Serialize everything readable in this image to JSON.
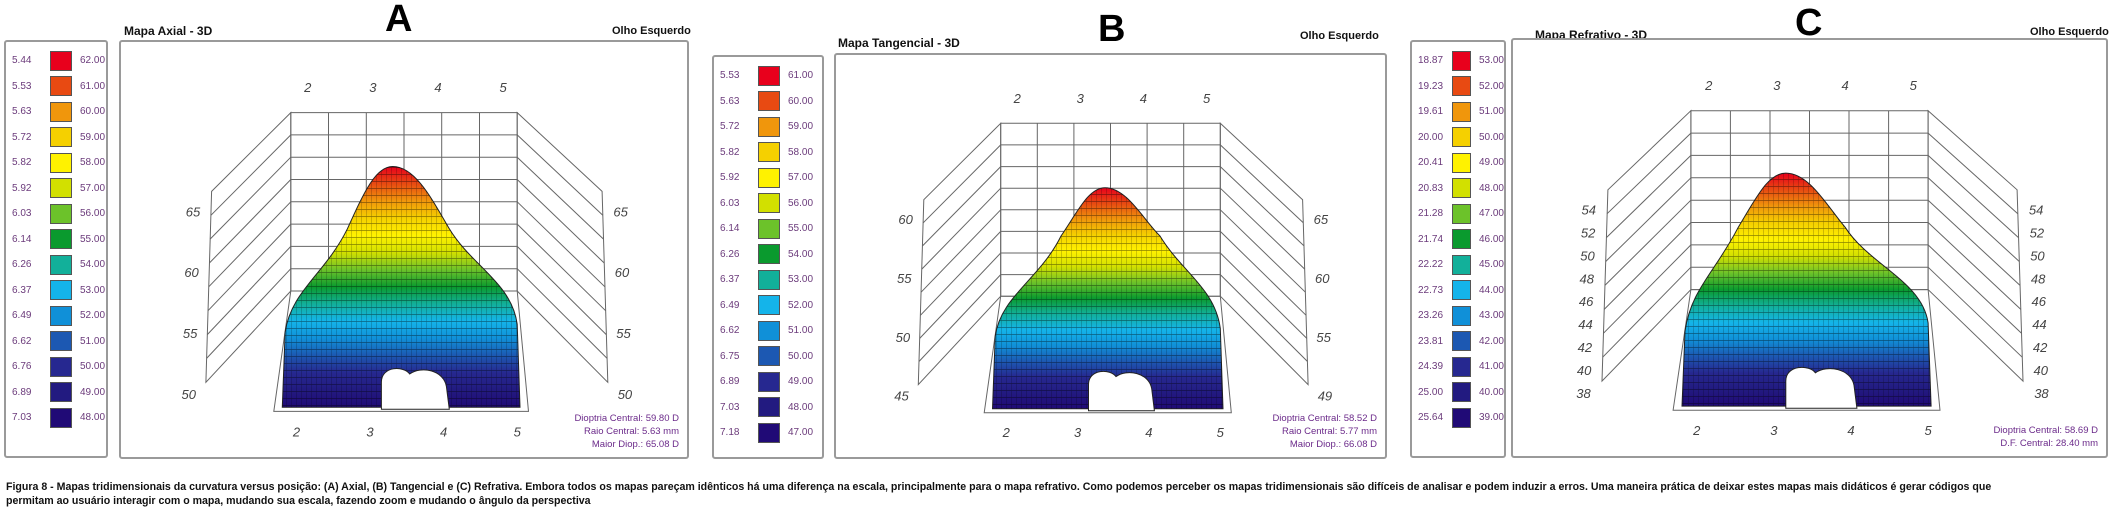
{
  "panels": [
    {
      "title": "Mapa Axial - 3D",
      "letter": "A",
      "eye": "Olho Esquerdo",
      "legend": [
        [
          "5.44",
          "62.00"
        ],
        [
          "5.53",
          "61.00"
        ],
        [
          "5.63",
          "60.00"
        ],
        [
          "5.72",
          "59.00"
        ],
        [
          "5.82",
          "58.00"
        ],
        [
          "5.92",
          "57.00"
        ],
        [
          "6.03",
          "56.00"
        ],
        [
          "6.14",
          "55.00"
        ],
        [
          "6.26",
          "54.00"
        ],
        [
          "6.37",
          "53.00"
        ],
        [
          "6.49",
          "52.00"
        ],
        [
          "6.62",
          "51.00"
        ],
        [
          "6.76",
          "50.00"
        ],
        [
          "6.89",
          "49.00"
        ],
        [
          "7.03",
          "48.00"
        ]
      ],
      "axis_top": [
        "2",
        "3",
        "4",
        "5"
      ],
      "axis_bottom": [
        "2",
        "3",
        "4",
        "5"
      ],
      "axis_left": [
        "65",
        "60",
        "55",
        "50"
      ],
      "axis_right": [
        "65",
        "60",
        "55",
        "50"
      ],
      "stats": [
        "Dioptria Central: 59.80 D",
        "Raio Central: 5.63 mm",
        "Maior Diop.: 65.08 D"
      ]
    },
    {
      "title": "Mapa Tangencial - 3D",
      "letter": "B",
      "eye": "Olho Esquerdo",
      "legend": [
        [
          "5.53",
          "61.00"
        ],
        [
          "5.63",
          "60.00"
        ],
        [
          "5.72",
          "59.00"
        ],
        [
          "5.82",
          "58.00"
        ],
        [
          "5.92",
          "57.00"
        ],
        [
          "6.03",
          "56.00"
        ],
        [
          "6.14",
          "55.00"
        ],
        [
          "6.26",
          "54.00"
        ],
        [
          "6.37",
          "53.00"
        ],
        [
          "6.49",
          "52.00"
        ],
        [
          "6.62",
          "51.00"
        ],
        [
          "6.75",
          "50.00"
        ],
        [
          "6.89",
          "49.00"
        ],
        [
          "7.03",
          "48.00"
        ],
        [
          "7.18",
          "47.00"
        ]
      ],
      "axis_top": [
        "2",
        "3",
        "4",
        "5"
      ],
      "axis_bottom": [
        "2",
        "3",
        "4",
        "5"
      ],
      "axis_left": [
        "60",
        "55",
        "50",
        "45"
      ],
      "axis_right": [
        "65",
        "60",
        "55",
        "49"
      ],
      "stats": [
        "Dioptria Central: 58.52 D",
        "Raio Central: 5.77 mm",
        "Maior Diop.: 66.08 D"
      ]
    },
    {
      "title": "Mapa Refrativo - 3D",
      "letter": "C",
      "eye": "Olho Esquerdo",
      "legend": [
        [
          "18.87",
          "53.00"
        ],
        [
          "19.23",
          "52.00"
        ],
        [
          "19.61",
          "51.00"
        ],
        [
          "20.00",
          "50.00"
        ],
        [
          "20.41",
          "49.00"
        ],
        [
          "20.83",
          "48.00"
        ],
        [
          "21.28",
          "47.00"
        ],
        [
          "21.74",
          "46.00"
        ],
        [
          "22.22",
          "45.00"
        ],
        [
          "22.73",
          "44.00"
        ],
        [
          "23.26",
          "43.00"
        ],
        [
          "23.81",
          "42.00"
        ],
        [
          "24.39",
          "41.00"
        ],
        [
          "25.00",
          "40.00"
        ],
        [
          "25.64",
          "39.00"
        ]
      ],
      "axis_top": [
        "2",
        "3",
        "4",
        "5"
      ],
      "axis_bottom": [
        "2",
        "3",
        "4",
        "5"
      ],
      "axis_left": [
        "54",
        "52",
        "50",
        "48",
        "46",
        "44",
        "42",
        "40",
        "38"
      ],
      "axis_right": [
        "54",
        "52",
        "50",
        "48",
        "46",
        "44",
        "42",
        "40",
        "38"
      ],
      "stats": [
        "Dioptria Central: 58.69 D",
        "D.F. Central: 28.40 mm"
      ]
    }
  ],
  "colors": [
    "#e8001c",
    "#e84a12",
    "#f0960c",
    "#f5d000",
    "#fff200",
    "#d2e000",
    "#6cc22a",
    "#0a9a2e",
    "#12b09a",
    "#14b4ea",
    "#1090d8",
    "#1c58b2",
    "#262890",
    "#221a80",
    "#200a76"
  ],
  "caption": {
    "line1": "Figura 8 - Mapas tridimensionais da curvatura versus posição: (A) Axial, (B) Tangencial e (C) Refrativa. Embora todos os mapas pareçam idênticos há uma diferença na escala, principalmente para o mapa refrativo. Como podemos perceber os mapas tridimensionais são difíceis de analisar e podem induzir a erros. Uma maneira prática de deixar estes mapas mais didáticos é gerar códigos que",
    "line2": "permitam ao usuário interagir com o mapa, mudando sua escala, fazendo zoom e mudando o ângulo da perspectiva"
  }
}
